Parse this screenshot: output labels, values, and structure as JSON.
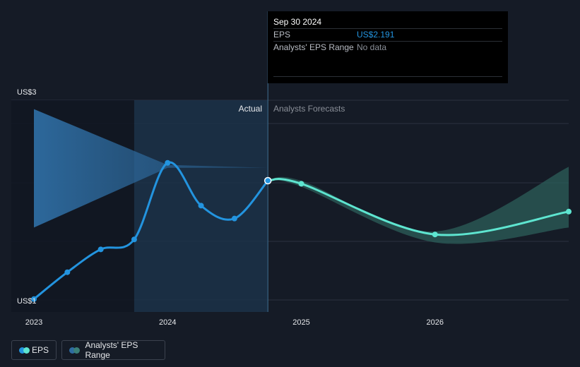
{
  "tooltip": {
    "date": "Sep 30 2024",
    "rows": [
      {
        "label": "EPS",
        "value": "US$2.191",
        "value_color": "#2394df"
      },
      {
        "label": "Analysts' EPS Range",
        "value": "No data",
        "value_color": "#8a8f98"
      }
    ]
  },
  "section_labels": {
    "actual": "Actual",
    "forecast": "Analysts Forecasts"
  },
  "legend": [
    {
      "label": "EPS",
      "colors": [
        "#2394df",
        "#5ee5d0"
      ]
    },
    {
      "label": "Analysts' EPS Range",
      "colors": [
        "#2e6ca1",
        "#3b7f78"
      ]
    }
  ],
  "colors": {
    "background": "#151b26",
    "eps_actual": "#2394df",
    "eps_forecast": "#5ee5d0",
    "range_actual": "#2e6ca1",
    "range_forecast": "#2c5f5a",
    "grid": "#2b3240",
    "highlight": "#1b3149"
  },
  "chart_data": {
    "type": "line",
    "title": "",
    "xlabel": "",
    "ylabel": "",
    "x_ticks": [
      2023,
      2024,
      2025,
      2026
    ],
    "y_ticks": [
      {
        "value": 3,
        "label": "US$3"
      },
      {
        "value": 1,
        "label": "US$1"
      }
    ],
    "ylim": [
      0.97,
      3
    ],
    "xlim": [
      2023,
      2027
    ],
    "grid": true,
    "highlighted_period": [
      2023.75,
      2024.75
    ],
    "series": [
      {
        "name": "EPS",
        "segment": "actual",
        "x": [
          2023.0,
          2023.25,
          2023.5,
          2023.75,
          2024.0,
          2024.25,
          2024.5,
          2024.75
        ],
        "y": [
          1.0,
          1.27,
          1.5,
          1.6,
          2.37,
          1.94,
          1.81,
          2.191
        ]
      },
      {
        "name": "EPS",
        "segment": "forecast",
        "x": [
          2024.75,
          2025.0,
          2026.0,
          2027.0
        ],
        "y": [
          2.191,
          2.16,
          1.65,
          1.88
        ]
      }
    ],
    "ranges": [
      {
        "name": "Analysts' EPS Range",
        "segment": "actual",
        "x": [
          2023.0,
          2024.0,
          2024.75
        ],
        "low": [
          1.72,
          2.32,
          2.32
        ],
        "high": [
          2.91,
          2.35,
          2.32
        ]
      },
      {
        "name": "Analysts' EPS Range",
        "segment": "forecast",
        "x": [
          2024.75,
          2025.0,
          2026.0,
          2027.0
        ],
        "low": [
          2.191,
          2.13,
          1.57,
          1.72
        ],
        "high": [
          2.191,
          2.19,
          1.68,
          2.33
        ]
      }
    ],
    "tooltip_date": 2024.75
  }
}
